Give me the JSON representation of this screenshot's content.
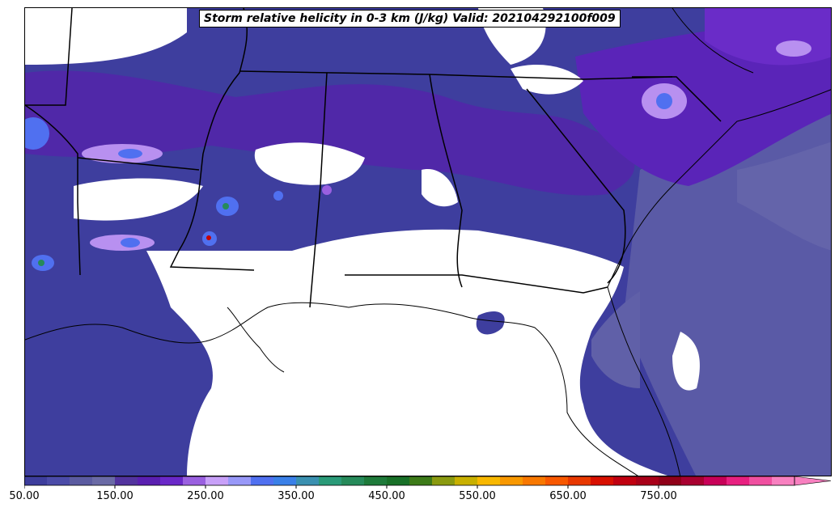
{
  "title": "Storm relative helicity in 0-3 km (J/kg) Valid: 202104292100f009",
  "colorbar": {
    "colors": [
      "#3d3d9c",
      "#4b4ba8",
      "#5b5ba0",
      "#6a6aa5",
      "#52339e",
      "#5a1fb0",
      "#6a28c8",
      "#9a60e0",
      "#c8a0f8",
      "#9898f8",
      "#5070f0",
      "#3a80e8",
      "#3a90b0",
      "#2a9a78",
      "#268a5a",
      "#1e7a3a",
      "#187028",
      "#3c7a18",
      "#8a9a10",
      "#c8b000",
      "#f8b800",
      "#f89800",
      "#f87800",
      "#f85800",
      "#e83800",
      "#d81000",
      "#c00010",
      "#a80018",
      "#900018",
      "#a80030",
      "#c80058",
      "#e82080",
      "#f050a0",
      "#f880c0"
    ],
    "ticks": [
      "50.00",
      "150.00",
      "250.00",
      "350.00",
      "450.00",
      "550.00",
      "650.00",
      "750.00"
    ]
  }
}
